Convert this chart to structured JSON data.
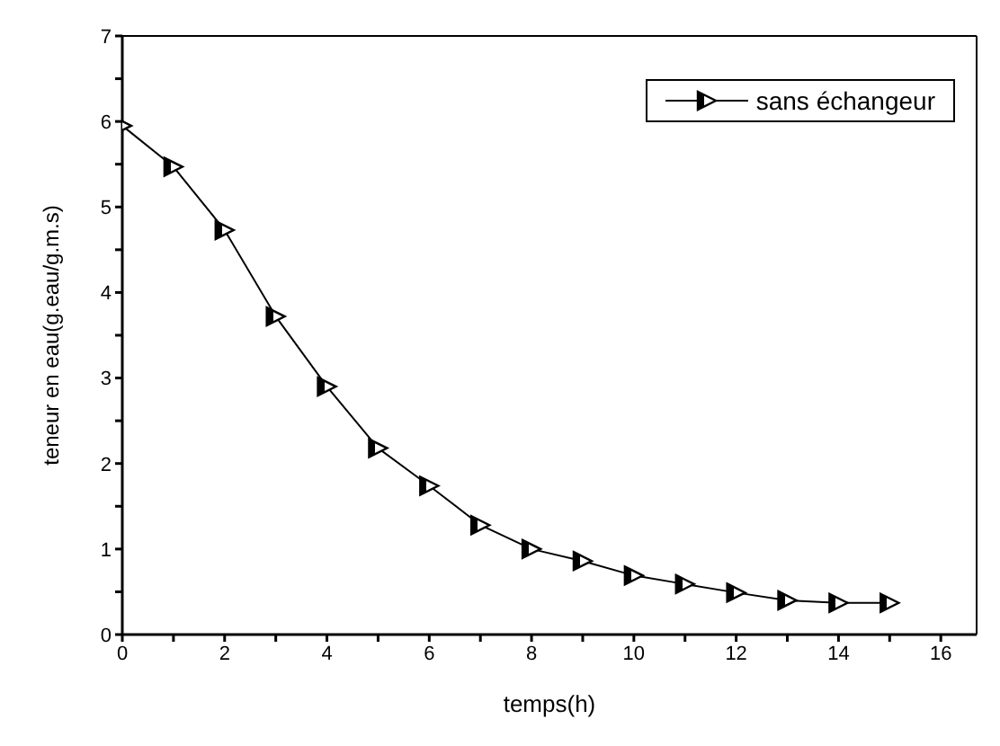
{
  "chart_data": {
    "type": "line",
    "xlabel": "temps(h)",
    "ylabel": "teneur en eau(g.eau/g.m.s)",
    "x": [
      0,
      1,
      2,
      3,
      4,
      5,
      6,
      7,
      8,
      9,
      10,
      11,
      12,
      13,
      14,
      15
    ],
    "series": [
      {
        "name": "sans échangeur",
        "color": "#000000",
        "values": [
          5.95,
          5.47,
          4.73,
          3.72,
          2.9,
          2.18,
          1.74,
          1.28,
          1.0,
          0.86,
          0.69,
          0.59,
          0.49,
          0.4,
          0.37,
          0.37
        ]
      }
    ],
    "xlim": [
      0,
      16.7
    ],
    "xticks": [
      0,
      {
        "value": 1,
        "label": null
      },
      2,
      {
        "value": 3,
        "label": null
      },
      4,
      {
        "value": 5,
        "label": null
      },
      6,
      {
        "value": 7,
        "label": null
      },
      8,
      {
        "value": 9,
        "label": null
      },
      10,
      {
        "value": 11,
        "label": null
      },
      12,
      {
        "value": 13,
        "label": null
      },
      14,
      {
        "value": 15,
        "label": null
      },
      16
    ],
    "ylim": [
      0,
      7
    ],
    "yticks": [
      0,
      {
        "value": 0.5,
        "label": null
      },
      1,
      {
        "value": 1.5,
        "label": null
      },
      2,
      {
        "value": 2.5,
        "label": null
      },
      3,
      {
        "value": 3.5,
        "label": null
      },
      4,
      {
        "value": 4.5,
        "label": null
      },
      5,
      {
        "value": 5.5,
        "label": null
      },
      6,
      {
        "value": 6.5,
        "label": null
      },
      7
    ],
    "marker": "triangle",
    "line_style": "solid",
    "legend": "top right",
    "grid": false
  }
}
